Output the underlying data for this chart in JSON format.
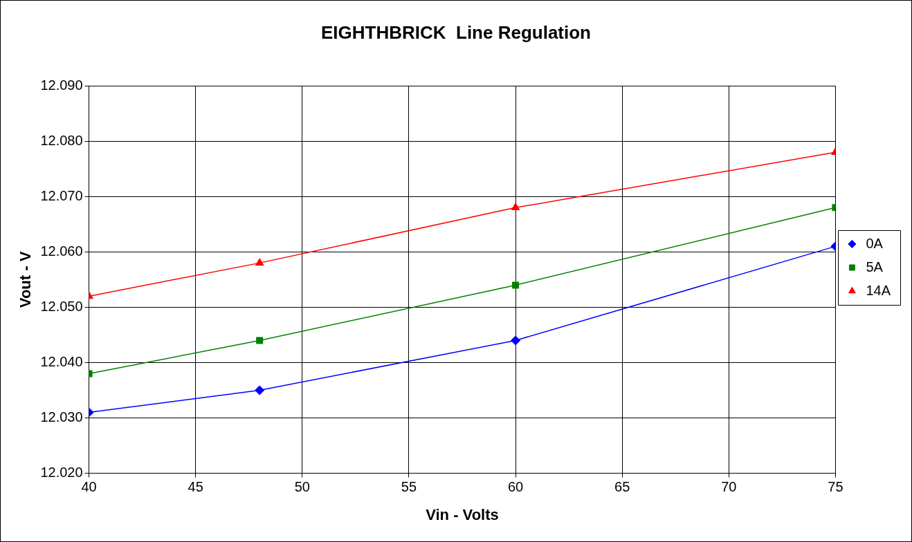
{
  "chart_data": {
    "type": "line",
    "title": "EIGHTHBRICK  Line Regulation",
    "xlabel": "Vin - Volts",
    "ylabel": "Vout - V",
    "x": [
      40,
      48,
      60,
      75
    ],
    "series": [
      {
        "name": "0A",
        "color": "#0000ff",
        "marker": "diamond",
        "values": [
          12.031,
          12.035,
          12.044,
          12.061
        ]
      },
      {
        "name": "5A",
        "color": "#008000",
        "marker": "square",
        "values": [
          12.038,
          12.044,
          12.054,
          12.068
        ]
      },
      {
        "name": "14A",
        "color": "#ff0000",
        "marker": "triangle",
        "values": [
          12.052,
          12.058,
          12.068,
          12.078
        ]
      }
    ],
    "xlim": [
      40,
      75
    ],
    "xticks": [
      40,
      45,
      50,
      55,
      60,
      65,
      70,
      75
    ],
    "ylim": [
      12.02,
      12.09
    ],
    "yticks": [
      {
        "value": 12.02,
        "label": "12.020"
      },
      {
        "value": 12.03,
        "label": "12.030"
      },
      {
        "value": 12.04,
        "label": "12.040"
      },
      {
        "value": 12.05,
        "label": "12.050"
      },
      {
        "value": 12.06,
        "label": "12.060"
      },
      {
        "value": 12.07,
        "label": "12.070"
      },
      {
        "value": 12.08,
        "label": "12.080"
      },
      {
        "value": 12.09,
        "label": "12.090"
      }
    ],
    "grid": true,
    "legend": "right",
    "line_style": "solid"
  }
}
